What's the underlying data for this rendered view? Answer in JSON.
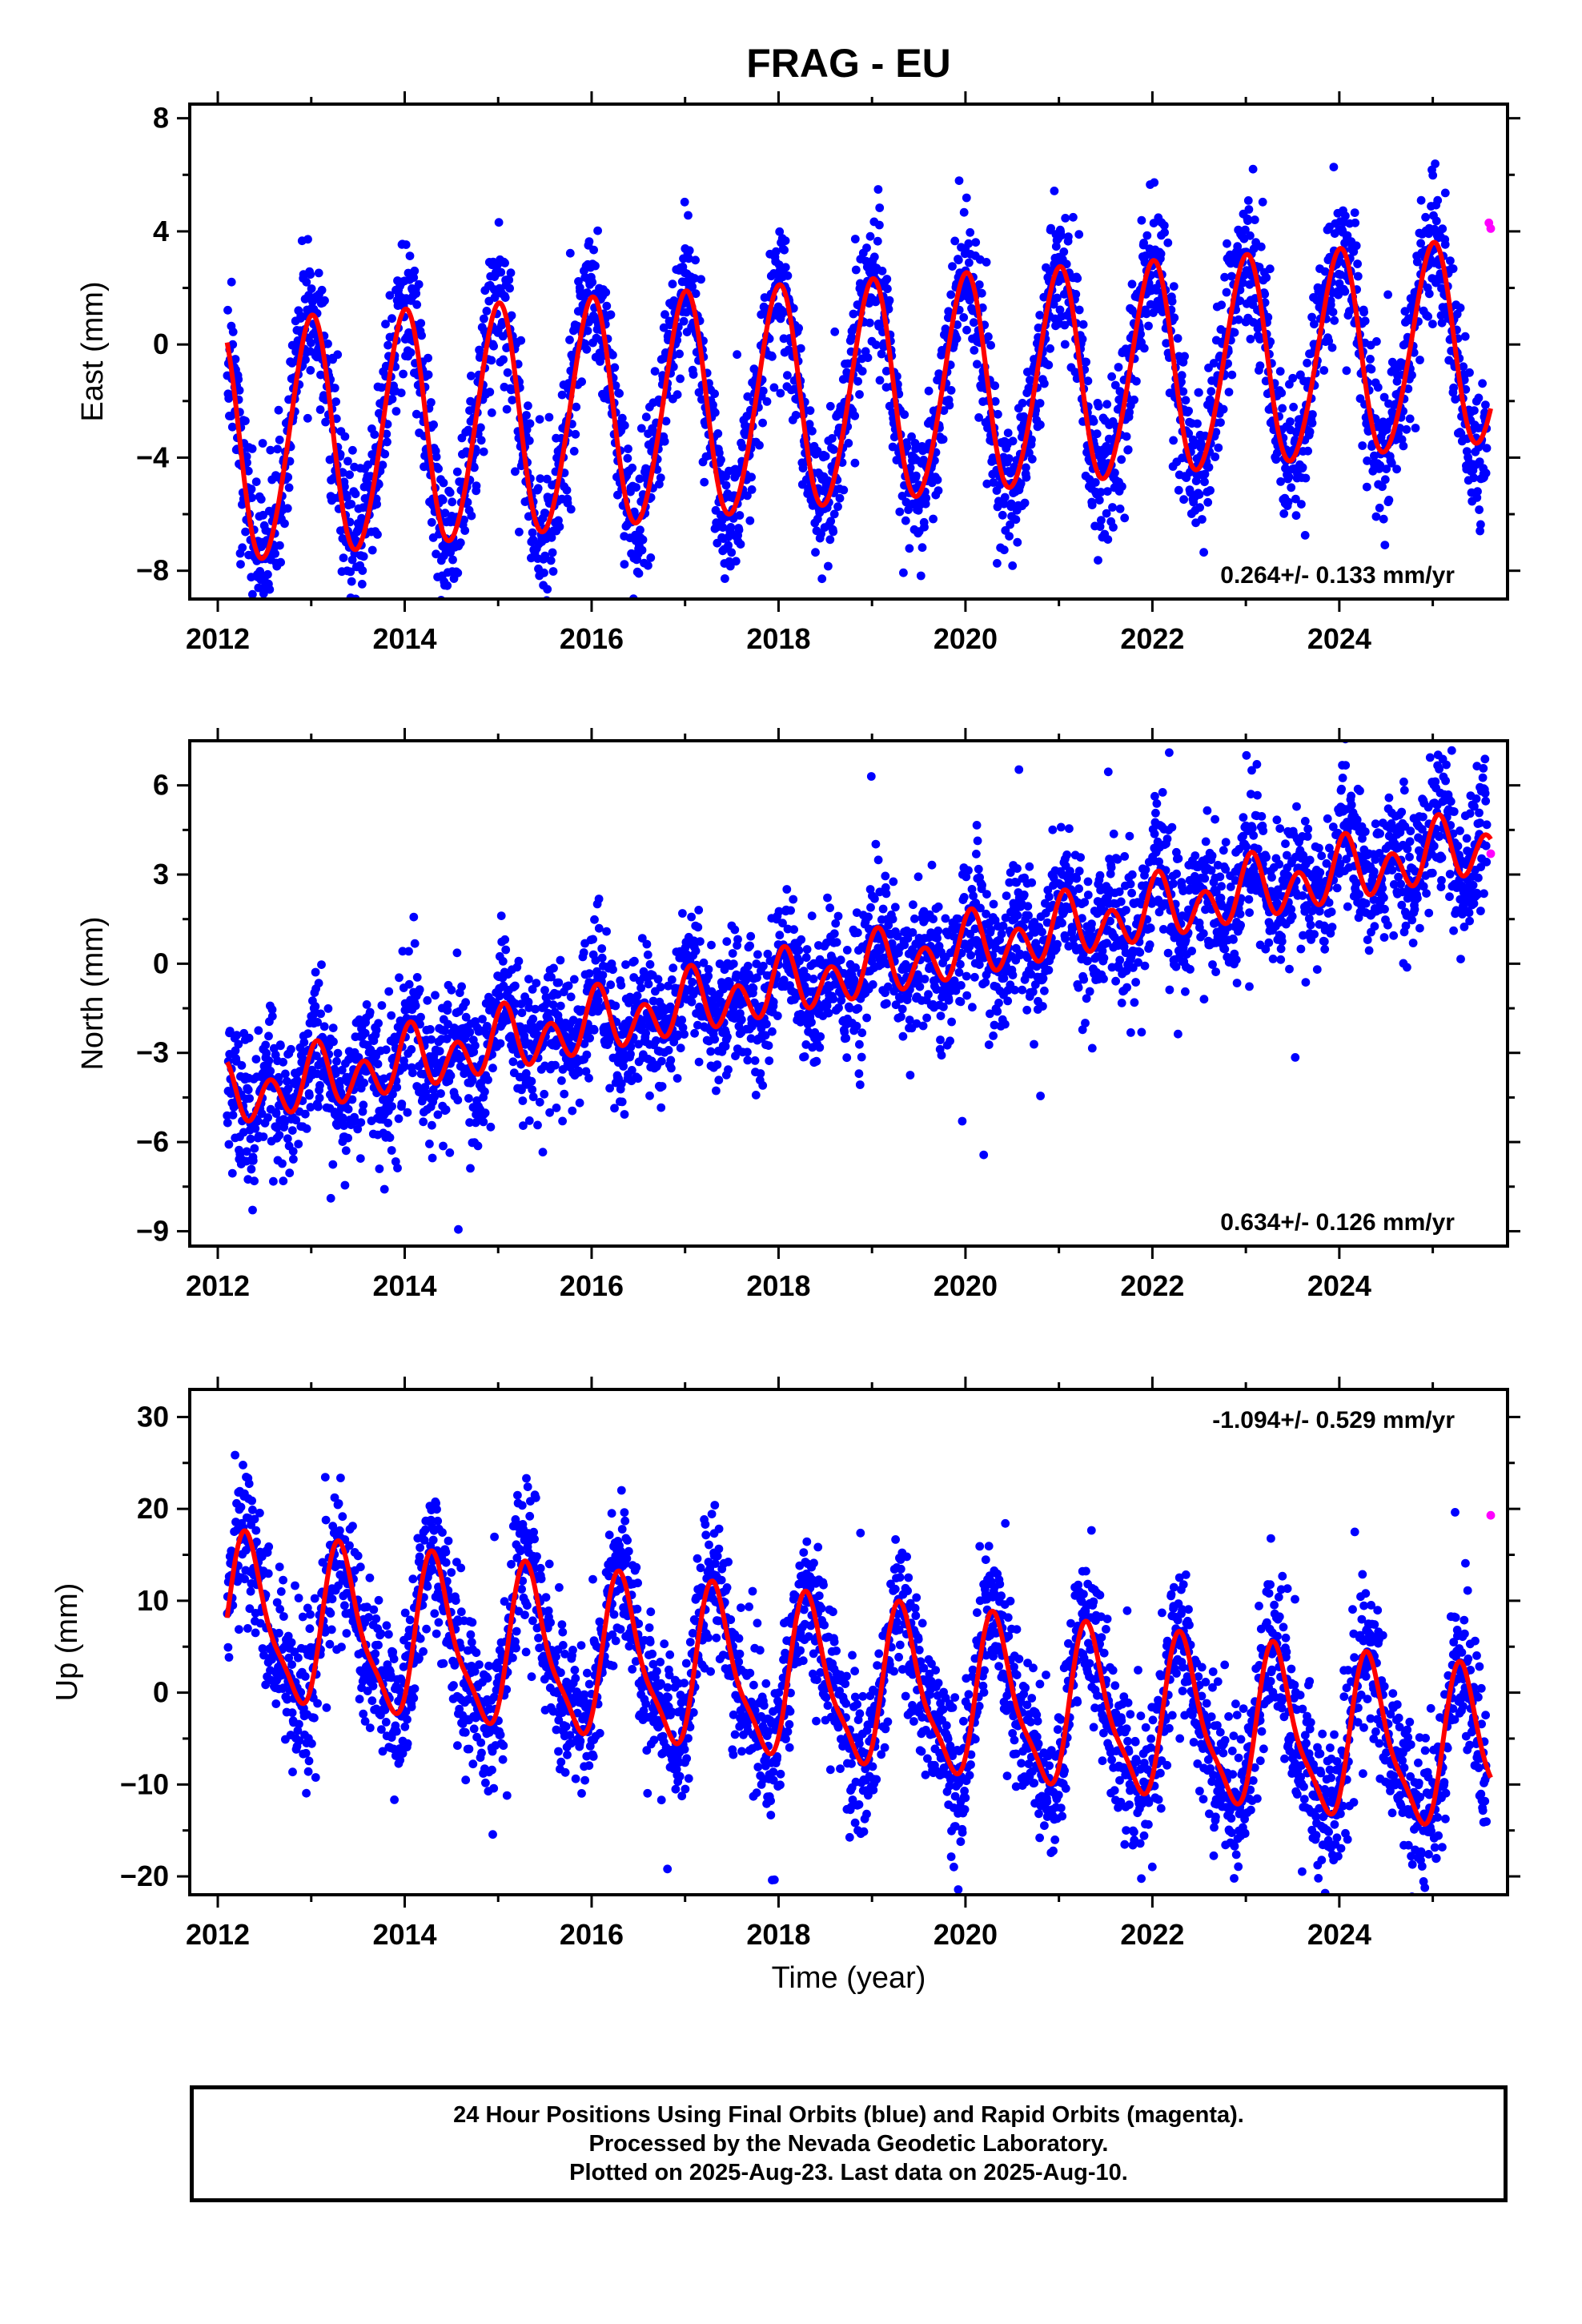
{
  "title": "FRAG - EU",
  "xlabel": "Time (year)",
  "x_ticks": [
    "2012",
    "2014",
    "2016",
    "2018",
    "2020",
    "2022",
    "2024"
  ],
  "colors": {
    "final": "#0000ff",
    "rapid": "#ff00ff",
    "model": "#ff0000"
  },
  "caption": [
    "24 Hour Positions Using Final Orbits (blue) and Rapid Orbits (magenta).",
    "Processed by the Nevada Geodetic Laboratory.",
    "Plotted on 2025-Aug-23. Last data on 2025-Aug-10."
  ],
  "chart_data": [
    {
      "type": "scatter",
      "id": "east",
      "ylabel": "East (mm)",
      "xlim": [
        2011.7,
        2025.8
      ],
      "ylim": [
        -9,
        8.5
      ],
      "y_ticks": [
        -8,
        -4,
        0,
        4,
        8
      ],
      "x_ticks": [
        2012,
        2014,
        2016,
        2018,
        2020,
        2022,
        2024
      ],
      "rate_label": "0.264+/- 0.133 mm/yr",
      "rate_label_position": "bottom-right",
      "model": {
        "offset": -1.8,
        "rate": 0.264,
        "t0": 2018.8,
        "annual_amp": 3.9,
        "annual_amp_change": -0.05,
        "annual_phase": 1.6,
        "semiannual_amp": 0.3,
        "semiannual_phase": 0.6,
        "t_start": 2012.1,
        "t_end": 2025.62
      },
      "series": [
        {
          "series": "final",
          "t_start": 2012.1,
          "t_end": 2025.58,
          "noise_sd": 1.3,
          "points_per_year": 240,
          "seed": 11
        },
        {
          "series": "rapid",
          "points": [
            [
              2025.62,
              4.1
            ],
            [
              2025.6,
              4.3
            ]
          ]
        }
      ]
    },
    {
      "type": "scatter",
      "id": "north",
      "ylabel": "North (mm)",
      "xlim": [
        2011.7,
        2025.8
      ],
      "ylim": [
        -9.5,
        7.5
      ],
      "y_ticks": [
        -9,
        -6,
        -3,
        0,
        3,
        6
      ],
      "x_ticks": [
        2012,
        2014,
        2016,
        2018,
        2020,
        2022,
        2024
      ],
      "rate_label": "0.634+/- 0.126 mm/yr",
      "rate_label_position": "bottom-right",
      "model": {
        "offset": -0.3,
        "rate": 0.634,
        "t0": 2018.8,
        "annual_amp": 0.5,
        "annual_amp_change": 0.0,
        "annual_phase": 1.2,
        "semiannual_amp": 0.85,
        "semiannual_phase": 0.8,
        "t_start": 2012.1,
        "t_end": 2025.62
      },
      "series": [
        {
          "series": "final",
          "t_start": 2012.1,
          "t_end": 2025.58,
          "noise_sd": 1.15,
          "points_per_year": 240,
          "seed": 23
        },
        {
          "series": "rapid",
          "points": [
            [
              2025.62,
              3.7
            ]
          ]
        }
      ]
    },
    {
      "type": "scatter",
      "id": "up",
      "ylabel": "Up (mm)",
      "xlim": [
        2011.7,
        2025.8
      ],
      "ylim": [
        -22,
        33
      ],
      "y_ticks": [
        -20,
        -10,
        0,
        10,
        20,
        30
      ],
      "x_ticks": [
        2012,
        2014,
        2016,
        2018,
        2020,
        2022,
        2024
      ],
      "rate_label": "-1.094+/- 0.529 mm/yr",
      "rate_label_position": "top-right",
      "model": {
        "offset": 0.5,
        "rate": -1.094,
        "t0": 2018.8,
        "annual_amp": 8.3,
        "annual_amp_change": 0.0,
        "annual_phase": -0.5,
        "semiannual_amp": 2.2,
        "semiannual_phase": -1.6,
        "t_start": 2012.1,
        "t_end": 2025.62
      },
      "series": [
        {
          "series": "final",
          "t_start": 2012.1,
          "t_end": 2025.58,
          "noise_sd": 4.2,
          "points_per_year": 240,
          "seed": 37
        },
        {
          "series": "rapid",
          "points": [
            [
              2025.62,
              19.3
            ]
          ]
        }
      ]
    }
  ]
}
